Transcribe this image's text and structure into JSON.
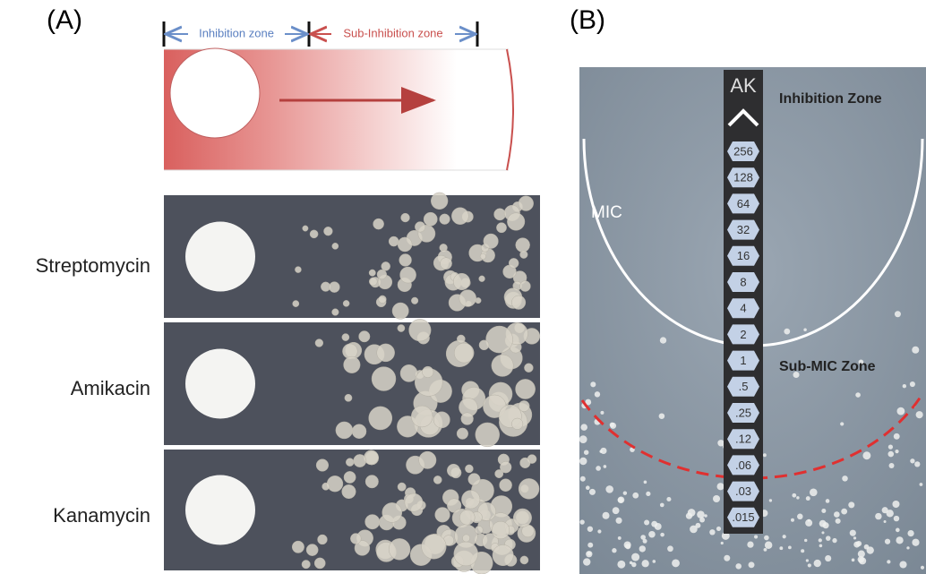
{
  "panel_a": {
    "label": "(A)",
    "diagram": {
      "inhibition_label": "Inhibition zone",
      "sub_inhibition_label": "Sub-Inhibition zone"
    },
    "rows": [
      {
        "label": "Streptomycin"
      },
      {
        "label": "Amikacin"
      },
      {
        "label": "Kanamycin"
      }
    ]
  },
  "panel_b": {
    "label": "(B)",
    "strip_title": "AK",
    "strip_labels": [
      "256",
      "128",
      "64",
      "32",
      "16",
      "8",
      "4",
      "2",
      "1",
      ".5",
      ".25",
      ".12",
      ".06",
      ".03",
      ".015"
    ],
    "inhibition_zone_label": "Inhibition Zone",
    "mic_label": "MIC",
    "sub_mic_label": "Sub-MIC Zone"
  }
}
